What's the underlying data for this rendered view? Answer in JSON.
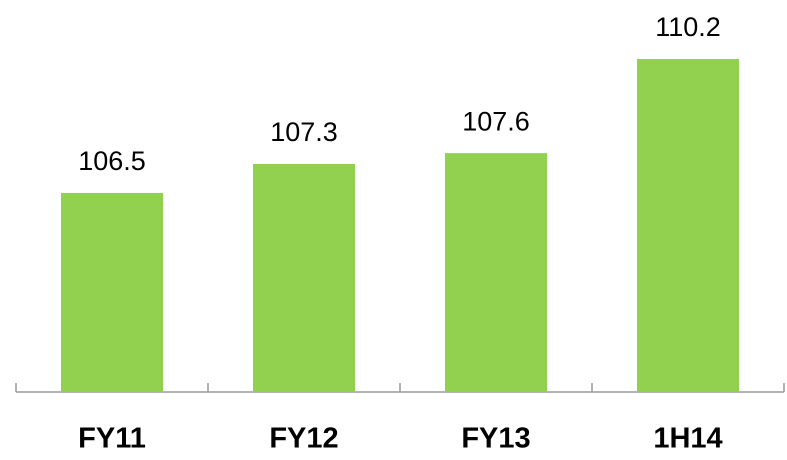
{
  "chart_data": {
    "type": "bar",
    "categories": [
      "FY11",
      "FY12",
      "FY13",
      "1H14"
    ],
    "values": [
      106.5,
      107.3,
      107.6,
      110.2
    ],
    "color": "#92d050",
    "ylim": [
      101,
      111.5
    ]
  }
}
